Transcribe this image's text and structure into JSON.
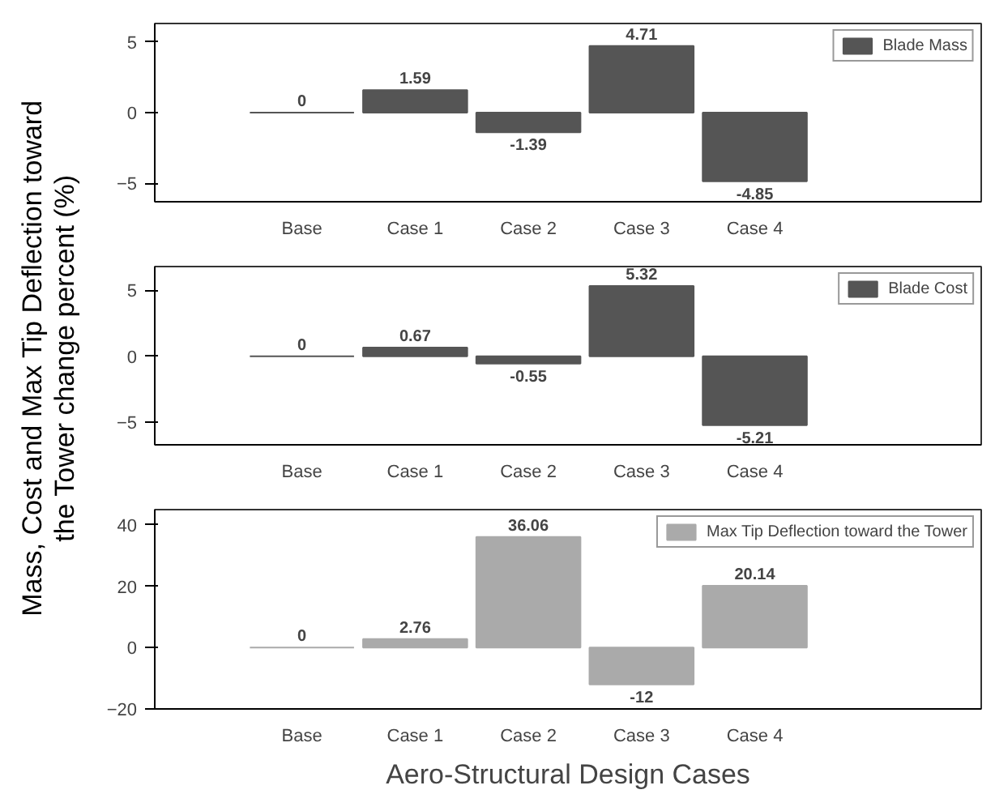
{
  "chart_data": [
    {
      "type": "bar",
      "ylabel": "Mass, Cost and Max Tip Deflection toward the Tower change percent (%)",
      "categories": [
        "Base",
        "Case 1",
        "Case 2",
        "Case 3",
        "Case 4"
      ],
      "series": [
        {
          "name": "Blade Mass",
          "color": "#555555",
          "values": [
            0,
            1.59,
            -1.39,
            4.71,
            -4.85
          ]
        }
      ],
      "ylim": [
        -6.3,
        6.3
      ],
      "yticks": [
        -5,
        0,
        5
      ],
      "data_labels": true,
      "legend": "top right",
      "grid": false
    },
    {
      "type": "bar",
      "categories": [
        "Base",
        "Case 1",
        "Case 2",
        "Case 3",
        "Case 4"
      ],
      "series": [
        {
          "name": "Blade Cost",
          "color": "#555555",
          "values": [
            0,
            0.67,
            -0.55,
            5.32,
            -5.21
          ]
        }
      ],
      "ylim": [
        -6.7,
        6.8
      ],
      "yticks": [
        -5,
        0,
        5
      ],
      "data_labels": true,
      "legend": "top right",
      "grid": false
    },
    {
      "type": "bar",
      "xlabel": "Aero-Structural Design Cases",
      "categories": [
        "Base",
        "Case 1",
        "Case 2",
        "Case 3",
        "Case 4"
      ],
      "series": [
        {
          "name": "Max Tip Deflection toward the Tower",
          "color": "#aaaaaa",
          "values": [
            0,
            2.76,
            36.06,
            -12,
            20.14
          ]
        }
      ],
      "ylim": [
        -20,
        45
      ],
      "yticks": [
        -20,
        0,
        20,
        40
      ],
      "data_labels": true,
      "legend": "top right",
      "grid": false
    }
  ]
}
